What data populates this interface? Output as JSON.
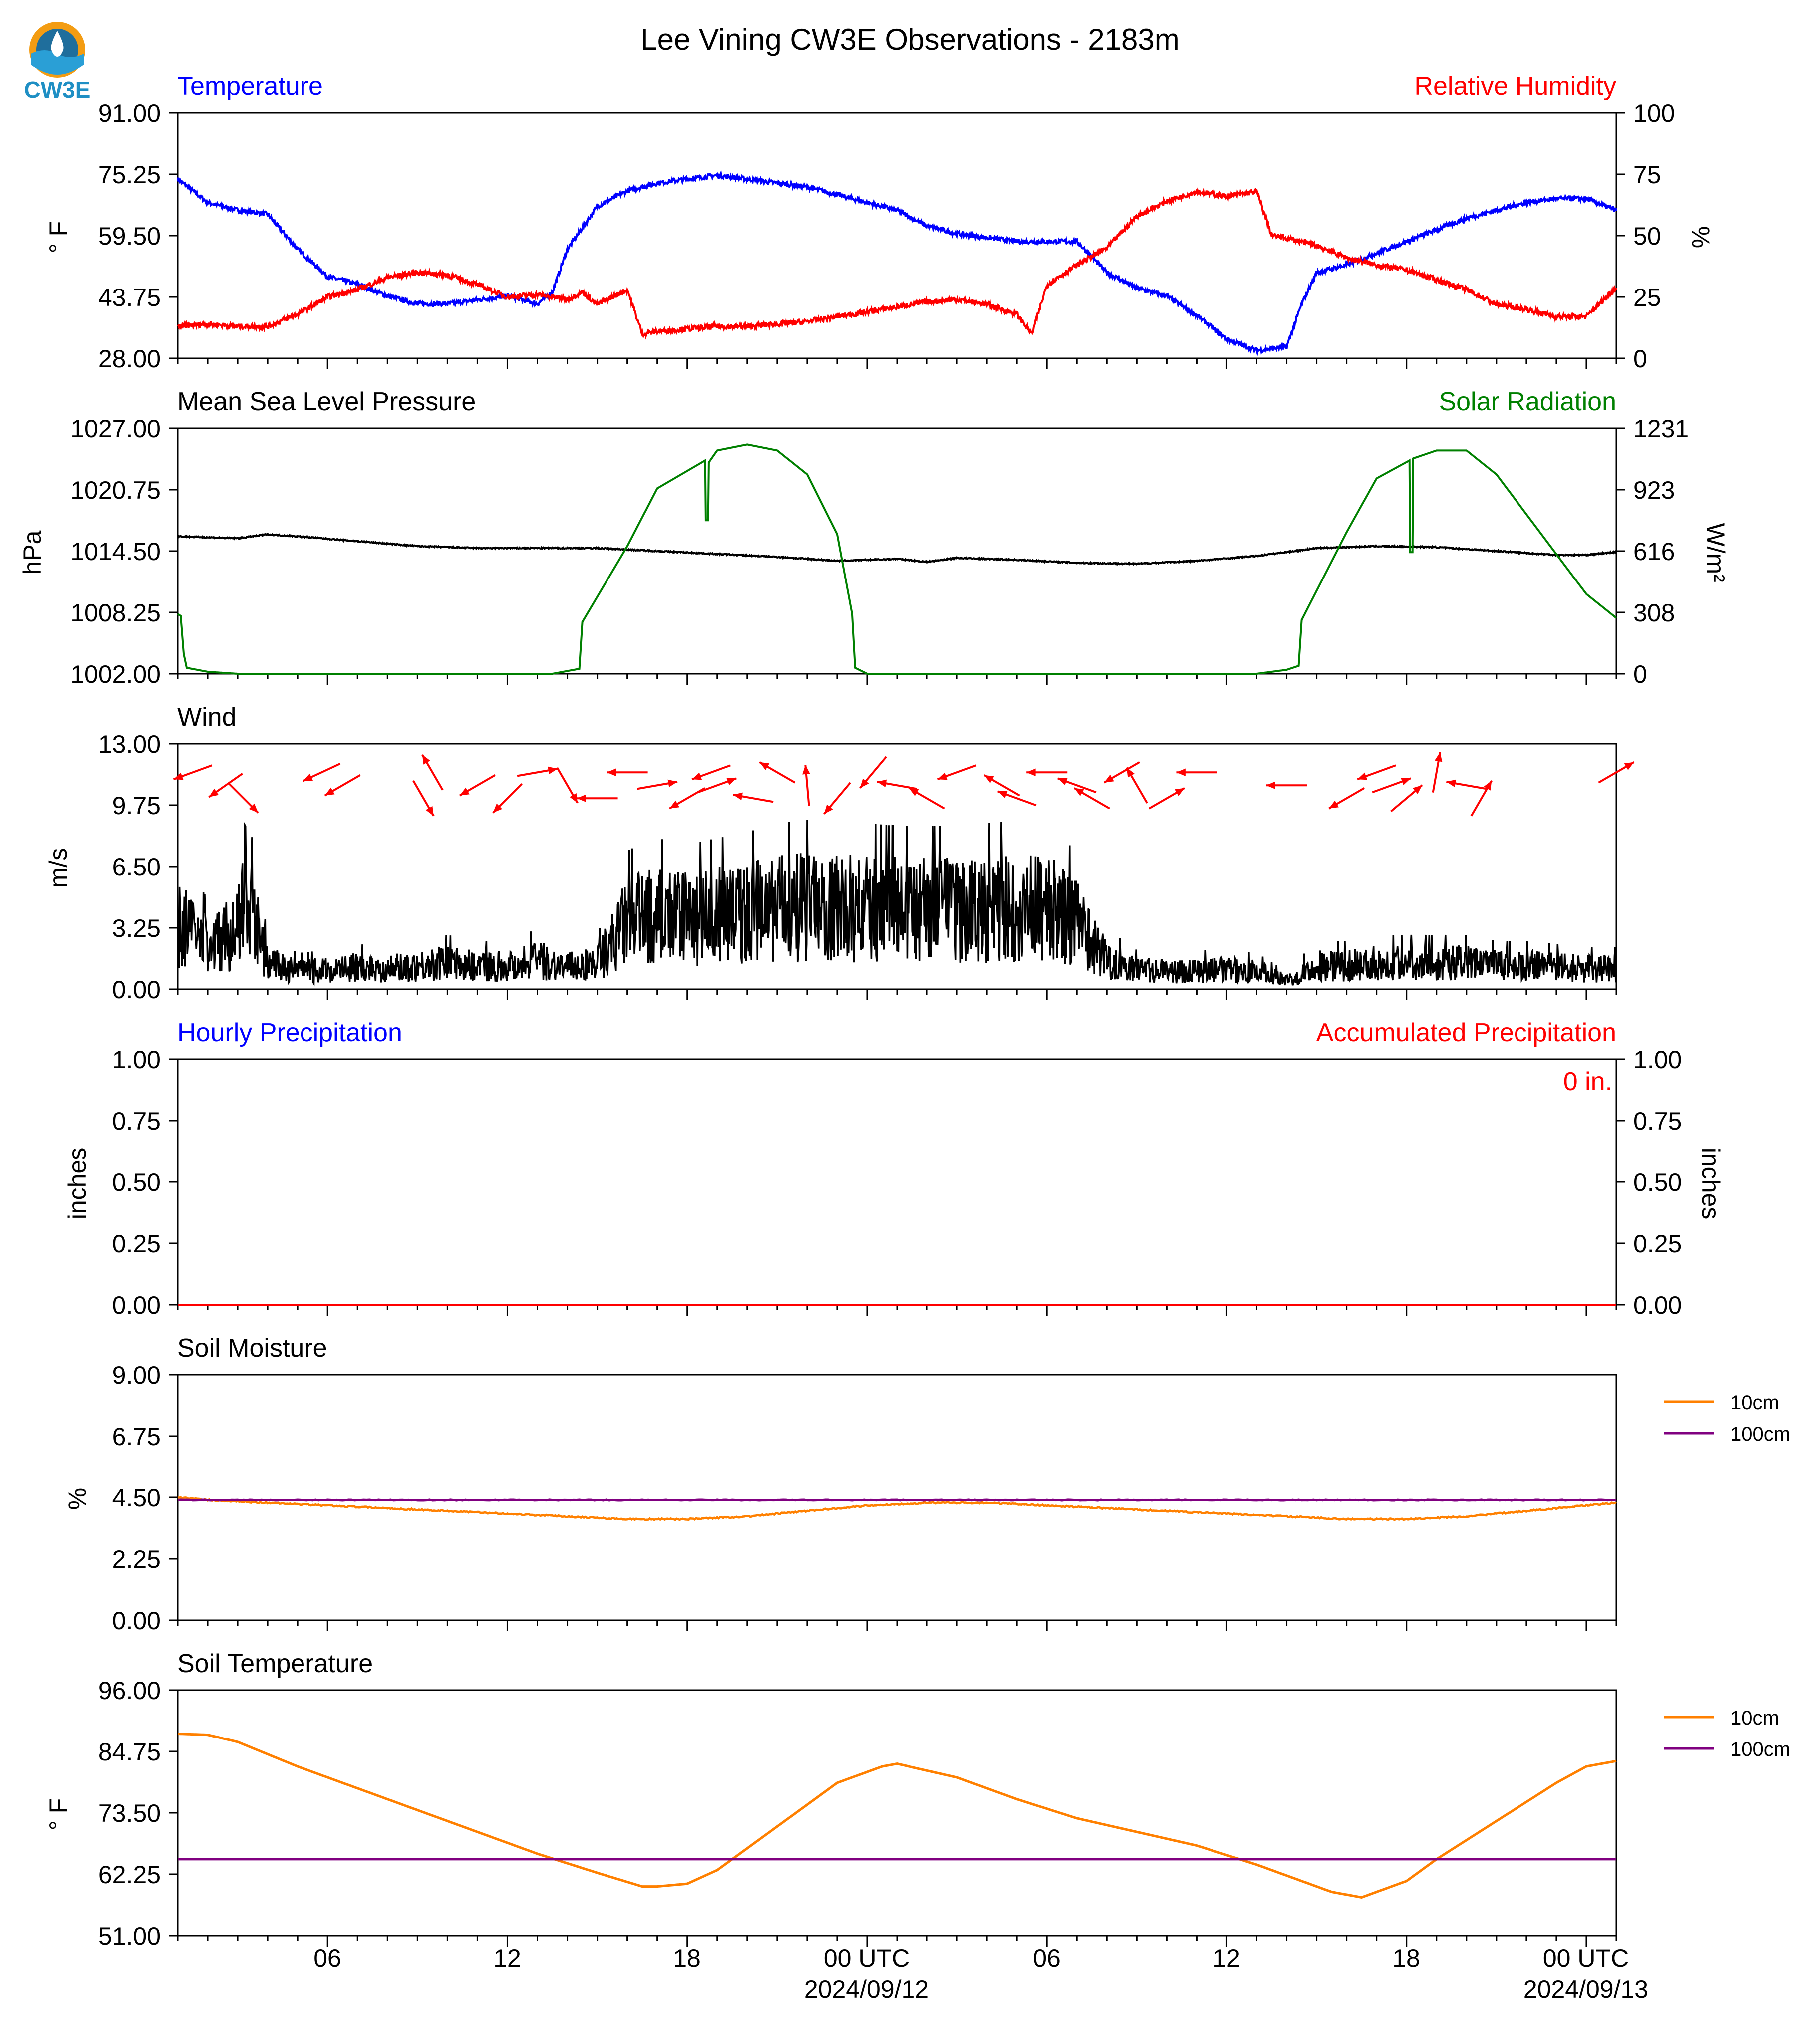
{
  "title": "Lee Vining CW3E Observations - 2183m",
  "logo": {
    "text": "CW3E",
    "colors": {
      "ring": "#f39c12",
      "wave": "#1f6e9c",
      "drop": "#2a9fd6"
    }
  },
  "colors": {
    "temperature": "#0000ff",
    "humidity": "#ff0000",
    "pressure": "#000000",
    "solar": "#008000",
    "wind": "#000000",
    "wind_arrow": "#ff0000",
    "precip_hourly": "#0000ff",
    "precip_accum": "#ff0000",
    "soil_10cm": "#ff8000",
    "soil_100cm": "#800080",
    "frame": "#000000"
  },
  "x_axis": {
    "start_hour": 0,
    "end_hour": 48,
    "ticks": [
      {
        "hour": 5,
        "label": "06"
      },
      {
        "hour": 11,
        "label": "12"
      },
      {
        "hour": 17,
        "label": "18"
      },
      {
        "hour": 23,
        "label": "00 UTC"
      },
      {
        "hour": 29,
        "label": "06"
      },
      {
        "hour": 35,
        "label": "12"
      },
      {
        "hour": 41,
        "label": "18"
      },
      {
        "hour": 47,
        "label": "00 UTC"
      }
    ],
    "date_labels": [
      {
        "hour": 23,
        "label": "2024/09/12"
      },
      {
        "hour": 47,
        "label": "2024/09/13"
      }
    ]
  },
  "panels": {
    "temp_rh": {
      "left_title": "Temperature",
      "right_title": "Relative Humidity",
      "ylabel": "° F",
      "y2label": "%",
      "ylim": [
        28,
        91
      ],
      "y2lim": [
        0,
        100
      ],
      "yticks": [
        "28.00",
        "43.75",
        "59.50",
        "75.25",
        "91.00"
      ],
      "y2ticks": [
        "0",
        "25",
        "50",
        "75",
        "100"
      ]
    },
    "pressure_solar": {
      "left_title": "Mean Sea Level Pressure",
      "right_title": "Solar Radiation",
      "ylabel": "hPa",
      "y2label": "W/m²",
      "ylim": [
        1002,
        1027
      ],
      "y2lim": [
        0,
        1231
      ],
      "yticks": [
        "1002.00",
        "1008.25",
        "1014.50",
        "1020.75",
        "1027.00"
      ],
      "y2ticks": [
        "0",
        "308",
        "616",
        "923",
        "1231"
      ]
    },
    "wind": {
      "left_title": "Wind",
      "ylabel": "m/s",
      "ylim": [
        0,
        13
      ],
      "yticks": [
        "0.00",
        "3.25",
        "6.50",
        "9.75",
        "13.00"
      ]
    },
    "precip": {
      "left_title": "Hourly Precipitation",
      "right_title": "Accumulated Precipitation",
      "ylabel": "inches",
      "y2label": "inches",
      "ylim": [
        0,
        1
      ],
      "y2lim": [
        0,
        1
      ],
      "yticks": [
        "0.00",
        "0.25",
        "0.50",
        "0.75",
        "1.00"
      ],
      "y2ticks": [
        "0.00",
        "0.25",
        "0.50",
        "0.75",
        "1.00"
      ],
      "accum_text": "0 in."
    },
    "soil_moisture": {
      "left_title": "Soil Moisture",
      "ylabel": "%",
      "ylim": [
        0,
        9
      ],
      "yticks": [
        "0.00",
        "2.25",
        "4.50",
        "6.75",
        "9.00"
      ],
      "legend": [
        "10cm",
        "100cm"
      ]
    },
    "soil_temp": {
      "left_title": "Soil Temperature",
      "ylabel": "° F",
      "ylim": [
        51,
        96
      ],
      "yticks": [
        "51.00",
        "62.25",
        "73.50",
        "84.75",
        "96.00"
      ],
      "legend": [
        "10cm",
        "100cm"
      ]
    }
  },
  "chart_data": [
    {
      "type": "line",
      "title": "Temperature / Relative Humidity",
      "x_unit": "hours since start",
      "series": [
        {
          "name": "Temperature",
          "axis": "left",
          "x": [
            0,
            1,
            2,
            3,
            4,
            5,
            6,
            7,
            8,
            9,
            10,
            11,
            12,
            12.5,
            13,
            14,
            15,
            16,
            17,
            18,
            19,
            20,
            21,
            22,
            23,
            24,
            25,
            26,
            27,
            28,
            29,
            30,
            31,
            32,
            33,
            34,
            35,
            36,
            37,
            37.5,
            38,
            39,
            40,
            41,
            42,
            43,
            44,
            45,
            46,
            47,
            48
          ],
          "y": [
            74,
            68,
            66,
            65,
            56,
            49,
            47,
            44,
            42,
            42,
            43,
            44,
            42,
            45,
            56,
            67,
            71,
            73,
            74,
            75,
            74,
            73,
            72,
            70,
            68,
            66,
            62,
            60,
            59,
            58,
            58,
            58,
            50,
            46,
            44,
            39,
            33,
            30,
            31,
            42,
            50,
            52,
            55,
            58,
            61,
            64,
            66,
            68,
            69,
            69,
            66
          ]
        },
        {
          "name": "Relative Humidity",
          "axis": "right",
          "x": [
            0,
            1,
            2,
            3,
            4,
            5,
            6,
            7,
            8,
            9,
            10,
            11,
            12,
            12.5,
            13,
            13.5,
            14,
            15,
            15.5,
            16,
            17,
            18,
            19,
            20,
            21,
            22,
            23,
            24,
            25,
            26,
            27,
            28,
            28.5,
            29,
            30,
            31,
            32,
            33,
            34,
            35,
            36,
            36.5,
            37,
            38,
            39,
            40,
            41,
            42,
            43,
            44,
            45,
            46,
            47,
            48
          ],
          "y": [
            13,
            14,
            13,
            13,
            18,
            25,
            28,
            33,
            35,
            34,
            30,
            25,
            26,
            25,
            24,
            27,
            22,
            28,
            10,
            11,
            12,
            13,
            13,
            14,
            15,
            17,
            19,
            21,
            23,
            24,
            22,
            18,
            10,
            30,
            38,
            45,
            58,
            64,
            68,
            66,
            68,
            50,
            49,
            46,
            41,
            38,
            36,
            32,
            28,
            22,
            20,
            17,
            17,
            29
          ]
        }
      ],
      "ylim": [
        28,
        91
      ],
      "y2lim": [
        0,
        100
      ]
    },
    {
      "type": "line",
      "title": "Mean Sea Level Pressure / Solar Radiation",
      "series": [
        {
          "name": "Mean Sea Level Pressure",
          "axis": "left",
          "x": [
            0,
            2,
            3,
            4,
            6,
            8,
            10,
            12,
            14,
            16,
            18,
            20,
            22,
            23,
            24,
            25,
            26,
            28,
            30,
            32,
            34,
            36,
            38,
            40,
            42,
            44,
            46,
            47,
            48
          ],
          "y": [
            1016,
            1015.8,
            1016.2,
            1016,
            1015.5,
            1015,
            1014.8,
            1014.8,
            1014.8,
            1014.5,
            1014.2,
            1013.9,
            1013.5,
            1013.6,
            1013.7,
            1013.4,
            1013.8,
            1013.6,
            1013.3,
            1013.2,
            1013.5,
            1014,
            1014.8,
            1015,
            1014.9,
            1014.5,
            1014.1,
            1014.1,
            1014.4
          ]
        },
        {
          "name": "Solar Radiation",
          "axis": "right",
          "x": [
            0,
            0.1,
            0.2,
            0.3,
            1,
            2,
            12,
            12.5,
            13.4,
            13.5,
            15,
            16,
            17.6,
            17.62,
            17.7,
            17.72,
            18,
            19,
            20,
            21,
            22,
            22.5,
            22.6,
            23,
            24,
            25,
            36,
            37,
            37.4,
            37.5,
            39,
            40,
            41.1,
            41.12,
            41.2,
            41.22,
            42,
            43,
            44,
            45,
            46,
            47,
            48
          ],
          "y": [
            300,
            290,
            100,
            30,
            10,
            0,
            0,
            0,
            25,
            260,
            640,
            930,
            1070,
            770,
            770,
            1060,
            1120,
            1150,
            1120,
            1000,
            700,
            300,
            30,
            0,
            0,
            0,
            0,
            20,
            40,
            270,
            710,
            980,
            1070,
            610,
            610,
            1080,
            1120,
            1120,
            1000,
            800,
            600,
            400,
            280
          ]
        }
      ],
      "ylim": [
        1002,
        1027
      ],
      "y2lim": [
        0,
        1231
      ]
    },
    {
      "type": "line",
      "title": "Wind",
      "series": [
        {
          "name": "Wind speed",
          "envelope_x": [
            0,
            1,
            2,
            2.2,
            2.5,
            3,
            4,
            5,
            6,
            7,
            8,
            9,
            10,
            11,
            12,
            13,
            14,
            15,
            16,
            17,
            18,
            19,
            20,
            21,
            22,
            23,
            24,
            25,
            26,
            27,
            28,
            29,
            30,
            31,
            32,
            33,
            34,
            35,
            36,
            37,
            38,
            39,
            40,
            41,
            42,
            43,
            44,
            45,
            46,
            47,
            48
          ],
          "envelope_y": [
            4.5,
            3,
            4,
            5.5,
            5,
            1.8,
            1.2,
            1.3,
            1.5,
            1.4,
            1.6,
            1.8,
            1.6,
            1.6,
            2,
            1.5,
            1.8,
            4.6,
            5,
            4.8,
            5,
            5.2,
            5.5,
            5.6,
            5.5,
            5.5,
            5.4,
            5.4,
            5.4,
            5.5,
            5.6,
            5.6,
            4.5,
            2,
            1.3,
            1.2,
            1.3,
            1.3,
            1.2,
            0.6,
            1.6,
            1.6,
            1.8,
            1.8,
            1.8,
            1.8,
            1.6,
            1.6,
            1.5,
            1.4,
            1.4
          ]
        }
      ],
      "wind_arrows": {
        "x": [
          0.5,
          1.6,
          2.2,
          4.8,
          5.5,
          8.2,
          8.5,
          10,
          11,
          12,
          13,
          14,
          15,
          16,
          17,
          17.8,
          18,
          19.2,
          20,
          21,
          22,
          23.2,
          24,
          25,
          26,
          27.5,
          28,
          29,
          30,
          30.5,
          31.5,
          32,
          33,
          34,
          37,
          39,
          40,
          40.5,
          41,
          42,
          43,
          43.5,
          48
        ],
        "dir_deg": [
          250,
          235,
          135,
          245,
          240,
          150,
          330,
          240,
          225,
          80,
          150,
          270,
          270,
          80,
          240,
          250,
          70,
          280,
          300,
          355,
          220,
          220,
          280,
          300,
          250,
          300,
          290,
          270,
          290,
          300,
          240,
          330,
          60,
          270,
          270,
          240,
          250,
          70,
          50,
          10,
          280,
          30,
          60
        ]
      },
      "ylim": [
        0,
        13
      ]
    },
    {
      "type": "line",
      "title": "Precipitation",
      "series": [
        {
          "name": "Hourly Precipitation",
          "axis": "left",
          "x": [
            0,
            48
          ],
          "y": [
            0,
            0
          ]
        },
        {
          "name": "Accumulated Precipitation",
          "axis": "right",
          "x": [
            0,
            48
          ],
          "y": [
            0,
            0
          ]
        }
      ],
      "ylim": [
        0,
        1
      ],
      "y2lim": [
        0,
        1
      ]
    },
    {
      "type": "line",
      "title": "Soil Moisture",
      "series": [
        {
          "name": "10cm",
          "x": [
            0,
            1,
            3,
            5,
            7,
            9,
            11,
            13,
            15,
            17,
            19,
            21,
            23,
            25,
            27,
            29,
            31,
            33,
            35,
            37,
            39,
            41,
            43,
            45,
            47,
            48
          ],
          "y": [
            4.5,
            4.4,
            4.3,
            4.2,
            4.1,
            4.0,
            3.9,
            3.8,
            3.7,
            3.7,
            3.8,
            4.0,
            4.2,
            4.3,
            4.3,
            4.2,
            4.1,
            4.0,
            3.9,
            3.8,
            3.7,
            3.7,
            3.8,
            4.0,
            4.2,
            4.3
          ]
        },
        {
          "name": "100cm",
          "x": [
            0,
            48
          ],
          "y": [
            4.4,
            4.4
          ]
        }
      ],
      "ylim": [
        0,
        9
      ]
    },
    {
      "type": "line",
      "title": "Soil Temperature",
      "series": [
        {
          "name": "10cm",
          "x": [
            0,
            1,
            2,
            4,
            6,
            8,
            10,
            12,
            14,
            15.5,
            16,
            17,
            18,
            19,
            20,
            22,
            23.5,
            24,
            26,
            28,
            30,
            32,
            34,
            36,
            38,
            38.5,
            39.5,
            40,
            41,
            42,
            44,
            46,
            47,
            48
          ],
          "y": [
            88,
            87.8,
            86.5,
            82,
            78,
            74,
            70,
            66,
            62.5,
            60,
            60,
            60.5,
            63,
            67,
            71,
            79,
            82,
            82.5,
            80,
            76,
            72.5,
            70,
            67.5,
            64,
            60,
            59,
            58,
            59,
            61,
            65,
            72,
            79,
            82,
            83
          ]
        },
        {
          "name": "100cm",
          "x": [
            0,
            48
          ],
          "y": [
            65,
            65
          ]
        }
      ],
      "ylim": [
        51,
        96
      ]
    }
  ]
}
